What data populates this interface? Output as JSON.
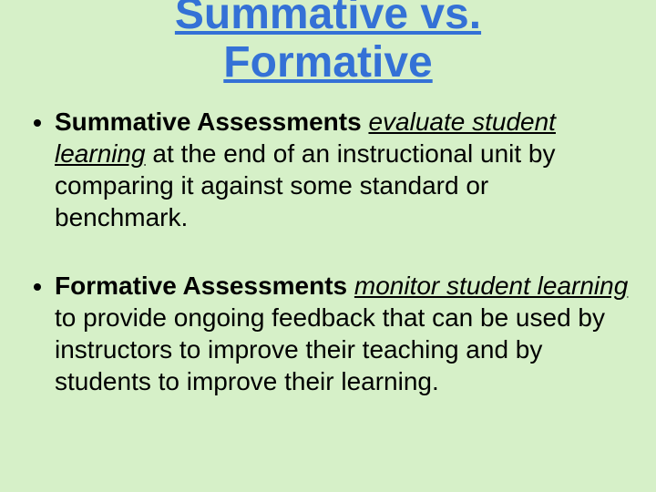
{
  "slide": {
    "background_color": "#d6f0c8",
    "text_color": "#000000",
    "title": {
      "line1": "Summative vs.",
      "line2": "Formative",
      "color": "#3471d6",
      "fontsize": 48,
      "underline": true,
      "bold": true,
      "align": "center"
    },
    "body_fontsize": 28,
    "bullets": [
      {
        "bold_lead": "Summative Assessments ",
        "italic_underline": "evaluate student learning",
        "rest": " at the end of an instructional unit by comparing it against some standard or benchmark."
      },
      {
        "bold_lead": "Formative Assessments ",
        "italic_underline": "monitor student learning",
        "rest": " to provide ongoing feedback that can be used by instructors to improve their teaching and by students to improve their learning."
      }
    ]
  }
}
